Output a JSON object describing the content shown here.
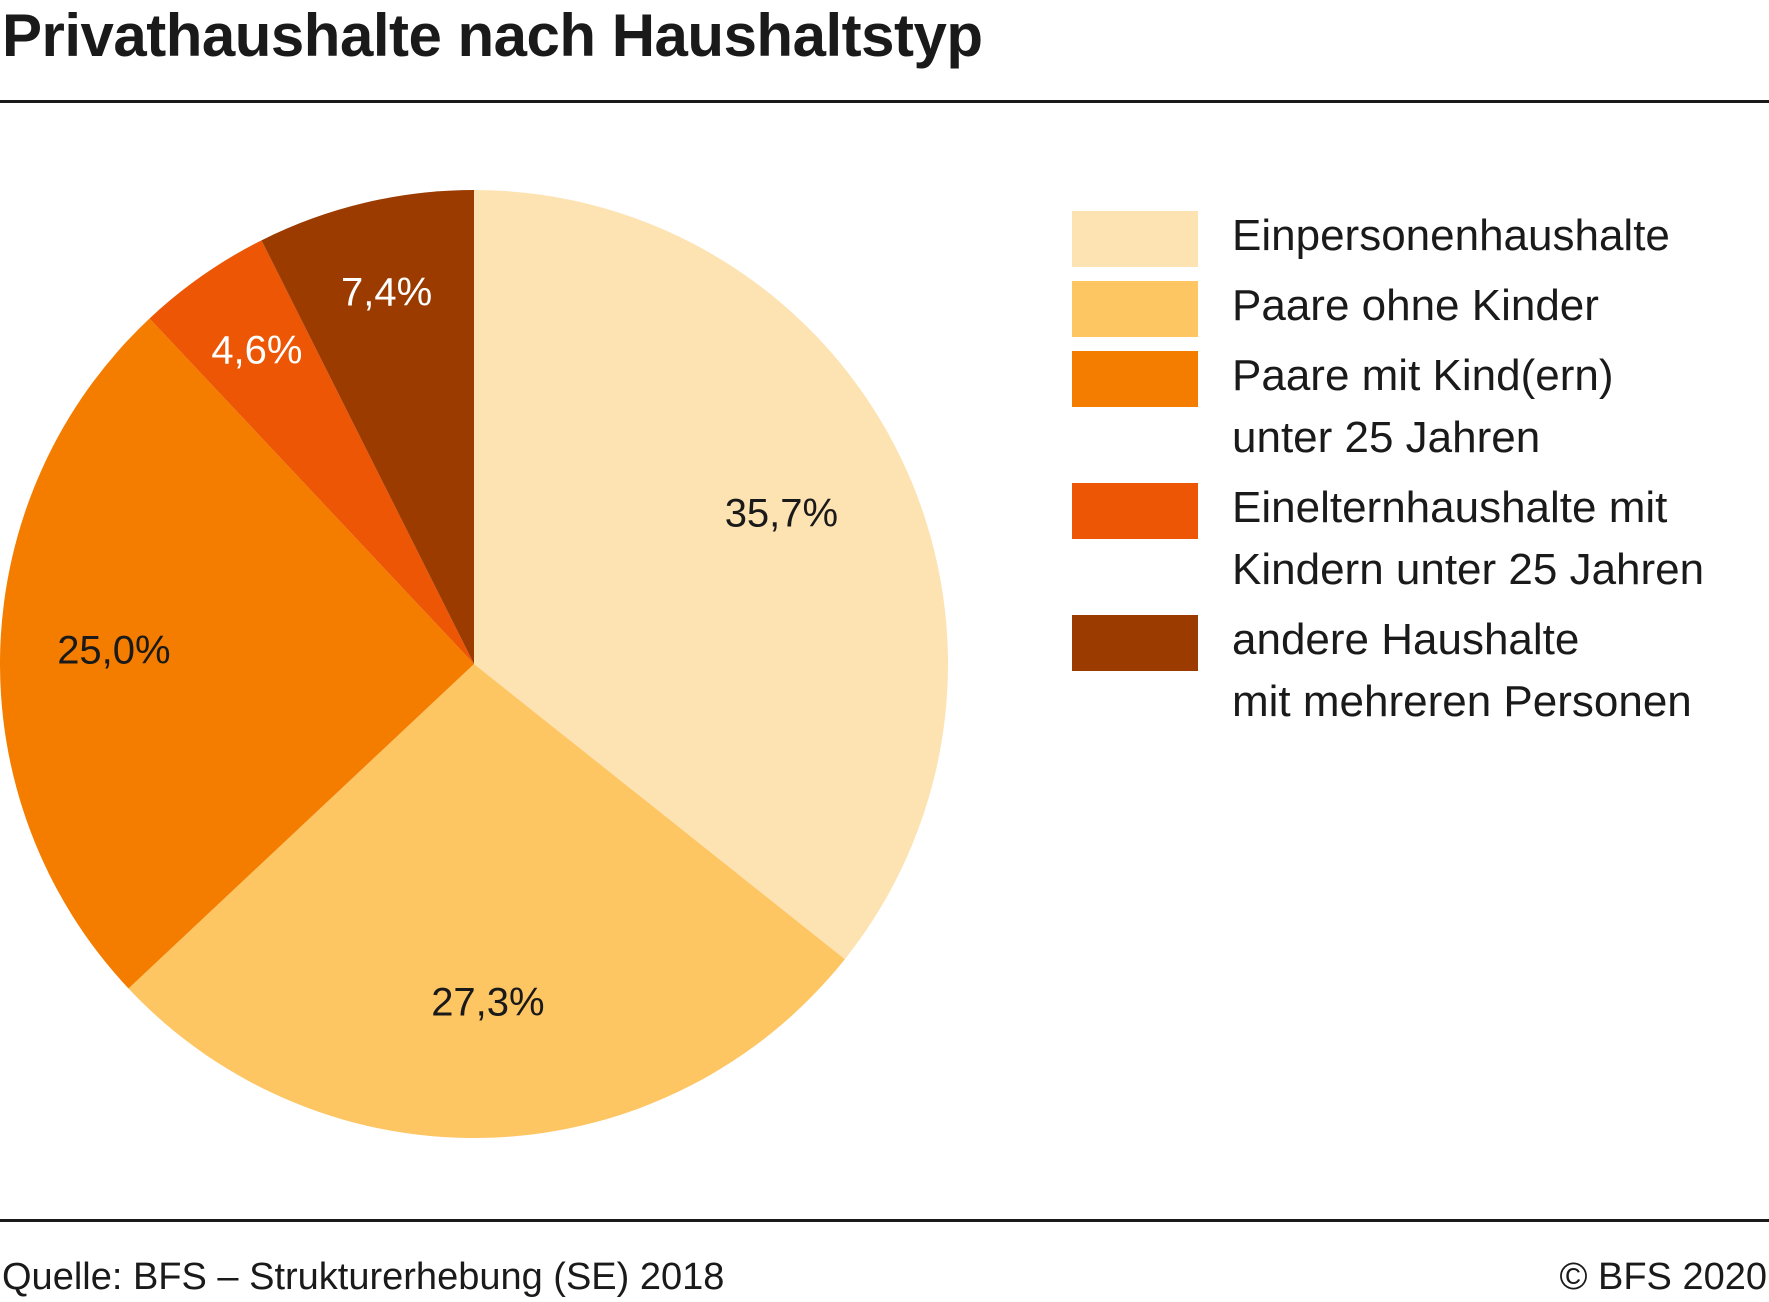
{
  "title": "Privathaushalte nach Haushaltstyp",
  "chart_data": {
    "type": "pie",
    "categories": [
      "Einpersonenhaushalte",
      "Paare ohne Kinder",
      "Paare mit Kind(ern)\nunter 25 Jahren",
      "Einelternhaushalte mit\nKindern unter 25 Jahren",
      "andere Haushalte\nmit mehreren Personen"
    ],
    "values": [
      35.7,
      27.3,
      25.0,
      4.6,
      7.4
    ],
    "labels": [
      "35,7%",
      "27,3%",
      "25,0%",
      "4,6%",
      "7,4%"
    ],
    "colors": [
      "#fde2b2",
      "#fec563",
      "#f47d00",
      "#ec5604",
      "#9b3b00"
    ],
    "label_colors": [
      "#1a1a1a",
      "#1a1a1a",
      "#1a1a1a",
      "#ffffff",
      "#ffffff"
    ],
    "legend": "right"
  },
  "footer": {
    "source": "Quelle: BFS – Strukturerhebung (SE) 2018",
    "copyright": "© BFS 2020"
  }
}
